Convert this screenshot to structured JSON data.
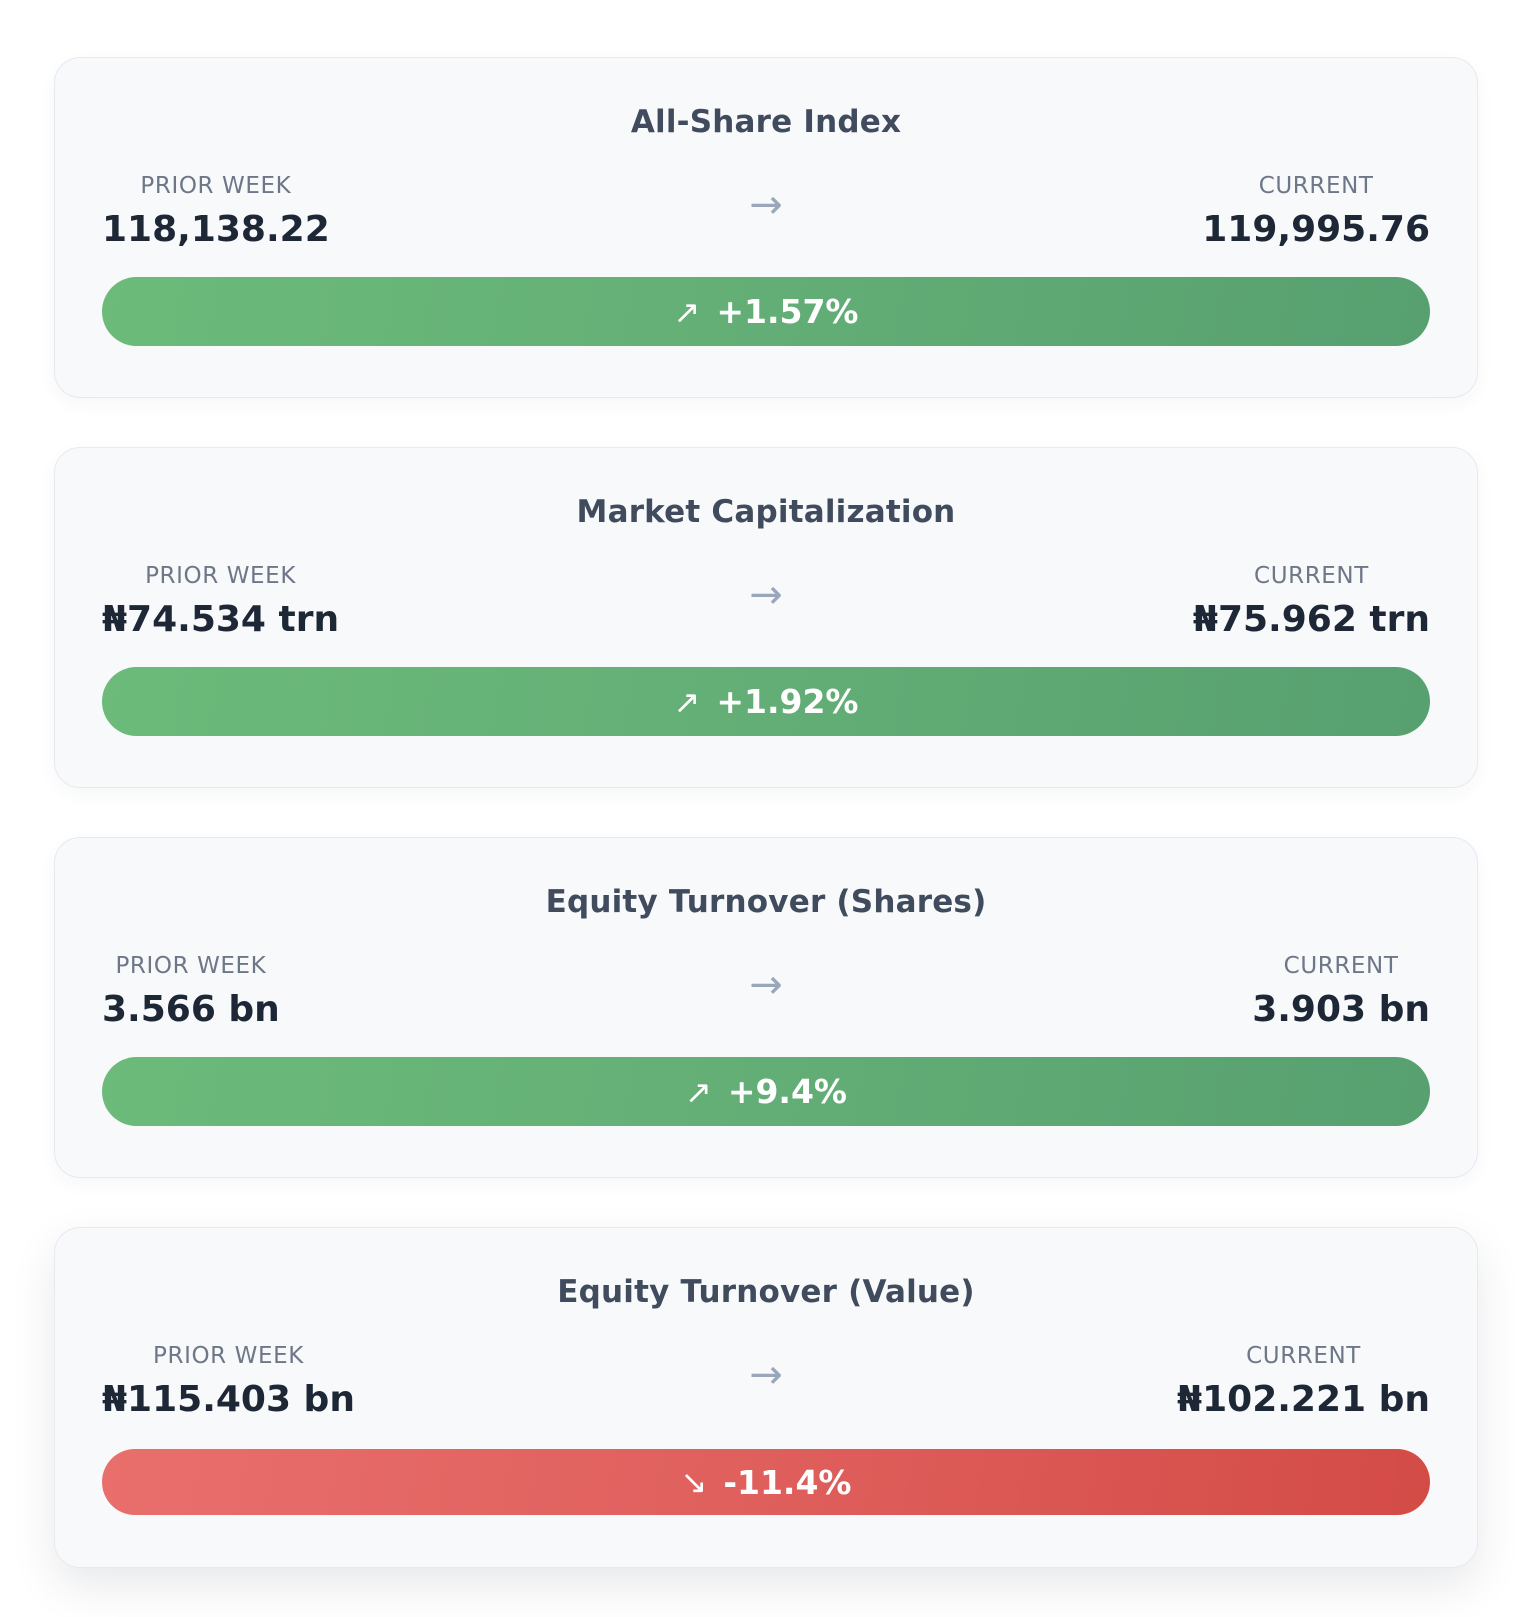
{
  "cards": [
    {
      "title": "All-Share Index",
      "prior_label": "PRIOR WEEK",
      "prior_value": "118,138.22",
      "current_label": "CURRENT",
      "current_value": "119,995.76",
      "arrow": "→",
      "trend_icon": "↗",
      "change": "+1.57%",
      "direction": "up"
    },
    {
      "title": "Market Capitalization",
      "prior_label": "PRIOR WEEK",
      "prior_value": "₦74.534 trn",
      "current_label": "CURRENT",
      "current_value": "₦75.962 trn",
      "arrow": "→",
      "trend_icon": "↗",
      "change": "+1.92%",
      "direction": "up"
    },
    {
      "title": "Equity Turnover (Shares)",
      "prior_label": "PRIOR WEEK",
      "prior_value": "3.566 bn",
      "current_label": "CURRENT",
      "current_value": "3.903 bn",
      "arrow": "→",
      "trend_icon": "↗",
      "change": "+9.4%",
      "direction": "up"
    },
    {
      "title": "Equity Turnover (Value)",
      "prior_label": "PRIOR WEEK",
      "prior_value": "₦115.403 bn",
      "current_label": "CURRENT",
      "current_value": "₦102.221 bn",
      "arrow": "→",
      "trend_icon": "↘",
      "change": "-11.4%",
      "direction": "down"
    }
  ],
  "colors": {
    "up": "#63ae76",
    "down": "#df5f5c",
    "card_bg": "#f7f9fb",
    "title": "#414b5e",
    "value": "#1e2736",
    "label": "#6e7788",
    "arrow": "#9aa6ba"
  }
}
